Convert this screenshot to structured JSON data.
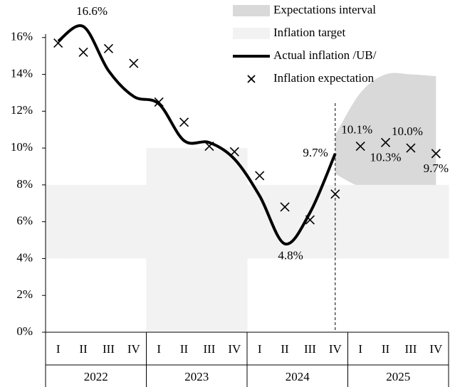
{
  "chart_data": {
    "type": "line",
    "categories": [
      "I",
      "II",
      "III",
      "IV",
      "I",
      "II",
      "III",
      "IV",
      "I",
      "II",
      "III",
      "IV",
      "I",
      "II",
      "III",
      "IV"
    ],
    "groups": [
      "2022",
      "2023",
      "2024",
      "2025"
    ],
    "ylim": [
      0,
      18
    ],
    "yticks": [
      {
        "value": 0,
        "label": "0%"
      },
      {
        "value": 2,
        "label": "2%"
      },
      {
        "value": 4,
        "label": "4%"
      },
      {
        "value": 6,
        "label": "6%"
      },
      {
        "value": 8,
        "label": "8%"
      },
      {
        "value": 10,
        "label": "10%"
      },
      {
        "value": 12,
        "label": "12%"
      },
      {
        "value": 14,
        "label": "14%"
      },
      {
        "value": 16,
        "label": "16%"
      }
    ],
    "series": [
      {
        "name": "Expectations interval",
        "type": "range",
        "color": "#d9d9d9",
        "low": [
          null,
          null,
          null,
          null,
          null,
          null,
          null,
          null,
          null,
          null,
          null,
          8.6,
          7.9,
          7.8,
          7.8,
          7.9
        ],
        "high": [
          null,
          null,
          null,
          null,
          null,
          null,
          null,
          null,
          null,
          null,
          null,
          10.7,
          13.0,
          14.0,
          14.0,
          13.9
        ]
      },
      {
        "name": "Inflation target",
        "type": "band",
        "color": "#f2f2f2",
        "low": [
          4,
          4,
          4,
          4,
          0,
          0,
          0,
          0,
          4,
          4,
          4,
          4,
          4,
          4,
          4,
          4
        ],
        "high": [
          8,
          8,
          8,
          8,
          10,
          10,
          10,
          10,
          8,
          8,
          8,
          8,
          8,
          8,
          8,
          8
        ]
      },
      {
        "name": "Actual inflation /UB/",
        "type": "line",
        "color": "#000000",
        "values": [
          15.8,
          16.6,
          14.2,
          12.8,
          12.4,
          10.4,
          10.3,
          9.4,
          7.4,
          4.8,
          6.5,
          9.7,
          null,
          null,
          null,
          null
        ],
        "value_labels": [
          null,
          "16.6%",
          null,
          null,
          null,
          null,
          null,
          null,
          null,
          "4.8%",
          null,
          "9.7%",
          null,
          null,
          null,
          null
        ]
      },
      {
        "name": "Inflation expectation",
        "type": "scatter",
        "color": "#000000",
        "values": [
          15.7,
          15.2,
          15.4,
          14.6,
          12.5,
          11.4,
          10.1,
          9.8,
          8.5,
          6.8,
          6.1,
          7.5,
          10.1,
          10.3,
          10.0,
          9.7
        ],
        "value_labels": [
          null,
          null,
          null,
          null,
          null,
          null,
          null,
          null,
          null,
          null,
          null,
          null,
          "10.1%",
          "10.3%",
          "10.0%",
          "9.7%"
        ]
      }
    ]
  }
}
